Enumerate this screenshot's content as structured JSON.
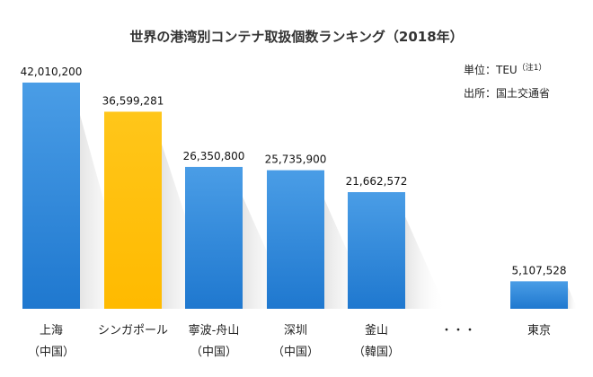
{
  "chart_data": {
    "type": "bar",
    "title": "世界の港湾別コンテナ取扱個数ランキング（2018年）",
    "unit_label": "単位：TEU",
    "unit_note": "（注1）",
    "source": "出所：国土交通省",
    "ellipsis": "・・・",
    "ylim": [
      0,
      42010200
    ],
    "categories": [
      {
        "name": "上海",
        "sub": "（中国）",
        "value": 42010200,
        "value_label": "42,010,200",
        "color": "#2e86d6"
      },
      {
        "name": "シンガポール",
        "sub": "",
        "value": 36599281,
        "value_label": "36,599,281",
        "color": "#ffc000"
      },
      {
        "name": "寧波-舟山",
        "sub": "（中国）",
        "value": 26350800,
        "value_label": "26,350,800",
        "color": "#2e86d6"
      },
      {
        "name": "深圳",
        "sub": "（中国）",
        "value": 25735900,
        "value_label": "25,735,900",
        "color": "#2e86d6"
      },
      {
        "name": "釜山",
        "sub": "（韓国）",
        "value": 21662572,
        "value_label": "21,662,572",
        "color": "#2e86d6"
      },
      {
        "name": "東京",
        "sub": "",
        "value": 5107528,
        "value_label": "5,107,528",
        "color": "#2e86d6"
      }
    ]
  }
}
